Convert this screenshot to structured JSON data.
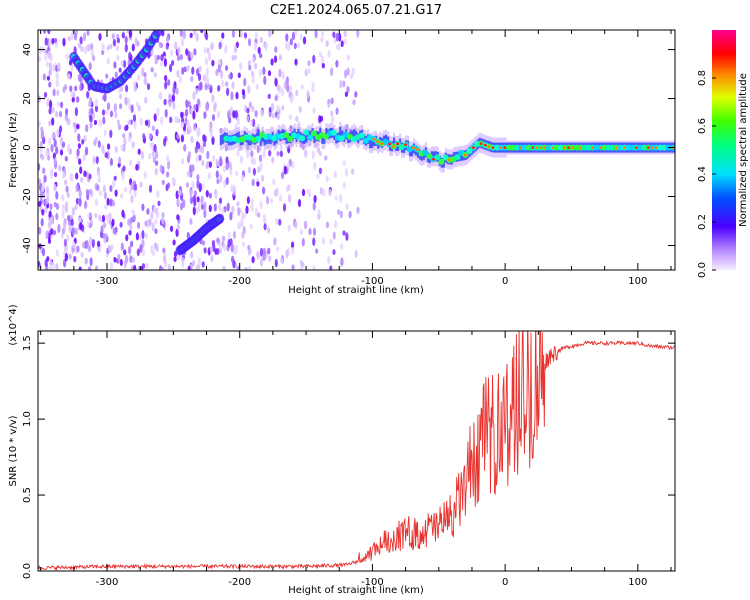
{
  "title": "C2E1.2024.065.07.21.G17",
  "colors": {
    "snr_line": "#e8322e",
    "spectrum_low": "#e9d3ff",
    "spectrum_mid": "#6a00ff",
    "spectrum_high": "#ff0000"
  },
  "chart_data": [
    {
      "type": "heatmap",
      "title": "C2E1.2024.065.07.21.G17",
      "xlabel": "Height of straight line (km)",
      "ylabel": "Frequency (Hz)",
      "xlim": [
        -352,
        128
      ],
      "ylim": [
        -50,
        48
      ],
      "x_ticks": [
        -300,
        -200,
        -100,
        0,
        100
      ],
      "y_ticks": [
        -40,
        -20,
        0,
        20,
        40
      ],
      "colorbar": {
        "label": "Normalized spectral amplitude",
        "range": [
          0,
          1
        ],
        "ticks": [
          "0.0",
          "0.2",
          "0.4",
          "0.6",
          "0.8"
        ],
        "colormap": "rainbow (white-violet to red)"
      },
      "features": [
        {
          "name": "main_track",
          "x": [
            -210,
            -180,
            -150,
            -120,
            -100,
            -80,
            -60,
            -50,
            -40,
            -30,
            -20,
            -10,
            0,
            50,
            128
          ],
          "y": [
            4,
            4,
            5,
            5,
            3,
            1,
            -3,
            -5,
            -4,
            -3,
            2,
            0,
            0,
            0,
            0
          ]
        },
        {
          "name": "upper_arc",
          "x": [
            -325,
            -310,
            -300,
            -290,
            -280,
            -270,
            -262
          ],
          "y": [
            37,
            25,
            24,
            27,
            33,
            40,
            47
          ]
        },
        {
          "name": "lower_arc",
          "x": [
            -245,
            -235,
            -225,
            -215
          ],
          "y": [
            -42,
            -38,
            -33,
            -29
          ]
        }
      ]
    },
    {
      "type": "line",
      "xlabel": "Height of straight line (km)",
      "ylabel": "SNR (10 * v/v)",
      "y_scale_label": "(x10^4)",
      "xlim": [
        -352,
        128
      ],
      "ylim": [
        0,
        1.58
      ],
      "x_ticks": [
        -300,
        -200,
        -100,
        0,
        100
      ],
      "y_ticks": [
        "0.0",
        "0.5",
        "1.0",
        "1.5"
      ],
      "series": [
        {
          "x": [
            -352,
            -300,
            -250,
            -200,
            -150,
            -120,
            -105,
            -95,
            -85,
            -75,
            -65,
            -55,
            -45,
            -35,
            -25,
            -15,
            -5,
            5,
            15,
            25,
            35,
            45,
            60,
            80,
            100,
            110,
            128
          ],
          "y": [
            0.02,
            0.03,
            0.03,
            0.03,
            0.03,
            0.04,
            0.08,
            0.17,
            0.22,
            0.25,
            0.25,
            0.28,
            0.32,
            0.45,
            0.7,
            0.88,
            0.92,
            1.05,
            1.18,
            1.32,
            1.43,
            1.47,
            1.5,
            1.5,
            1.5,
            1.48,
            1.47
          ]
        }
      ]
    }
  ]
}
